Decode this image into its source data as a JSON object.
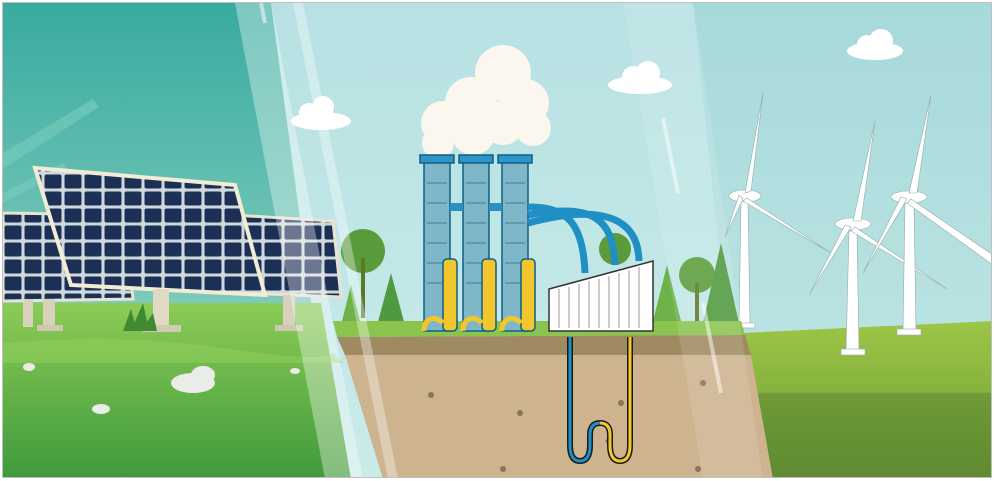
{
  "scene": {
    "panels": [
      "solar-energy",
      "geothermal-energy",
      "wind-energy"
    ],
    "icons": [
      "solar-panel-icon",
      "geothermal-plant-icon",
      "wind-turbine-icon",
      "cloud-icon",
      "tree-icon"
    ],
    "colors": {
      "sky_left": "#3fb2a8",
      "sky_center": "#b9e3e6",
      "sky_right": "#a9dcdd",
      "grass": "#7fbf4d",
      "soil": "#cdb38e",
      "pipe_blue": "#1f8fc4",
      "pipe_yellow": "#f2c72e",
      "solar_cell": "#1e3154",
      "turbine": "#ffffff"
    }
  }
}
